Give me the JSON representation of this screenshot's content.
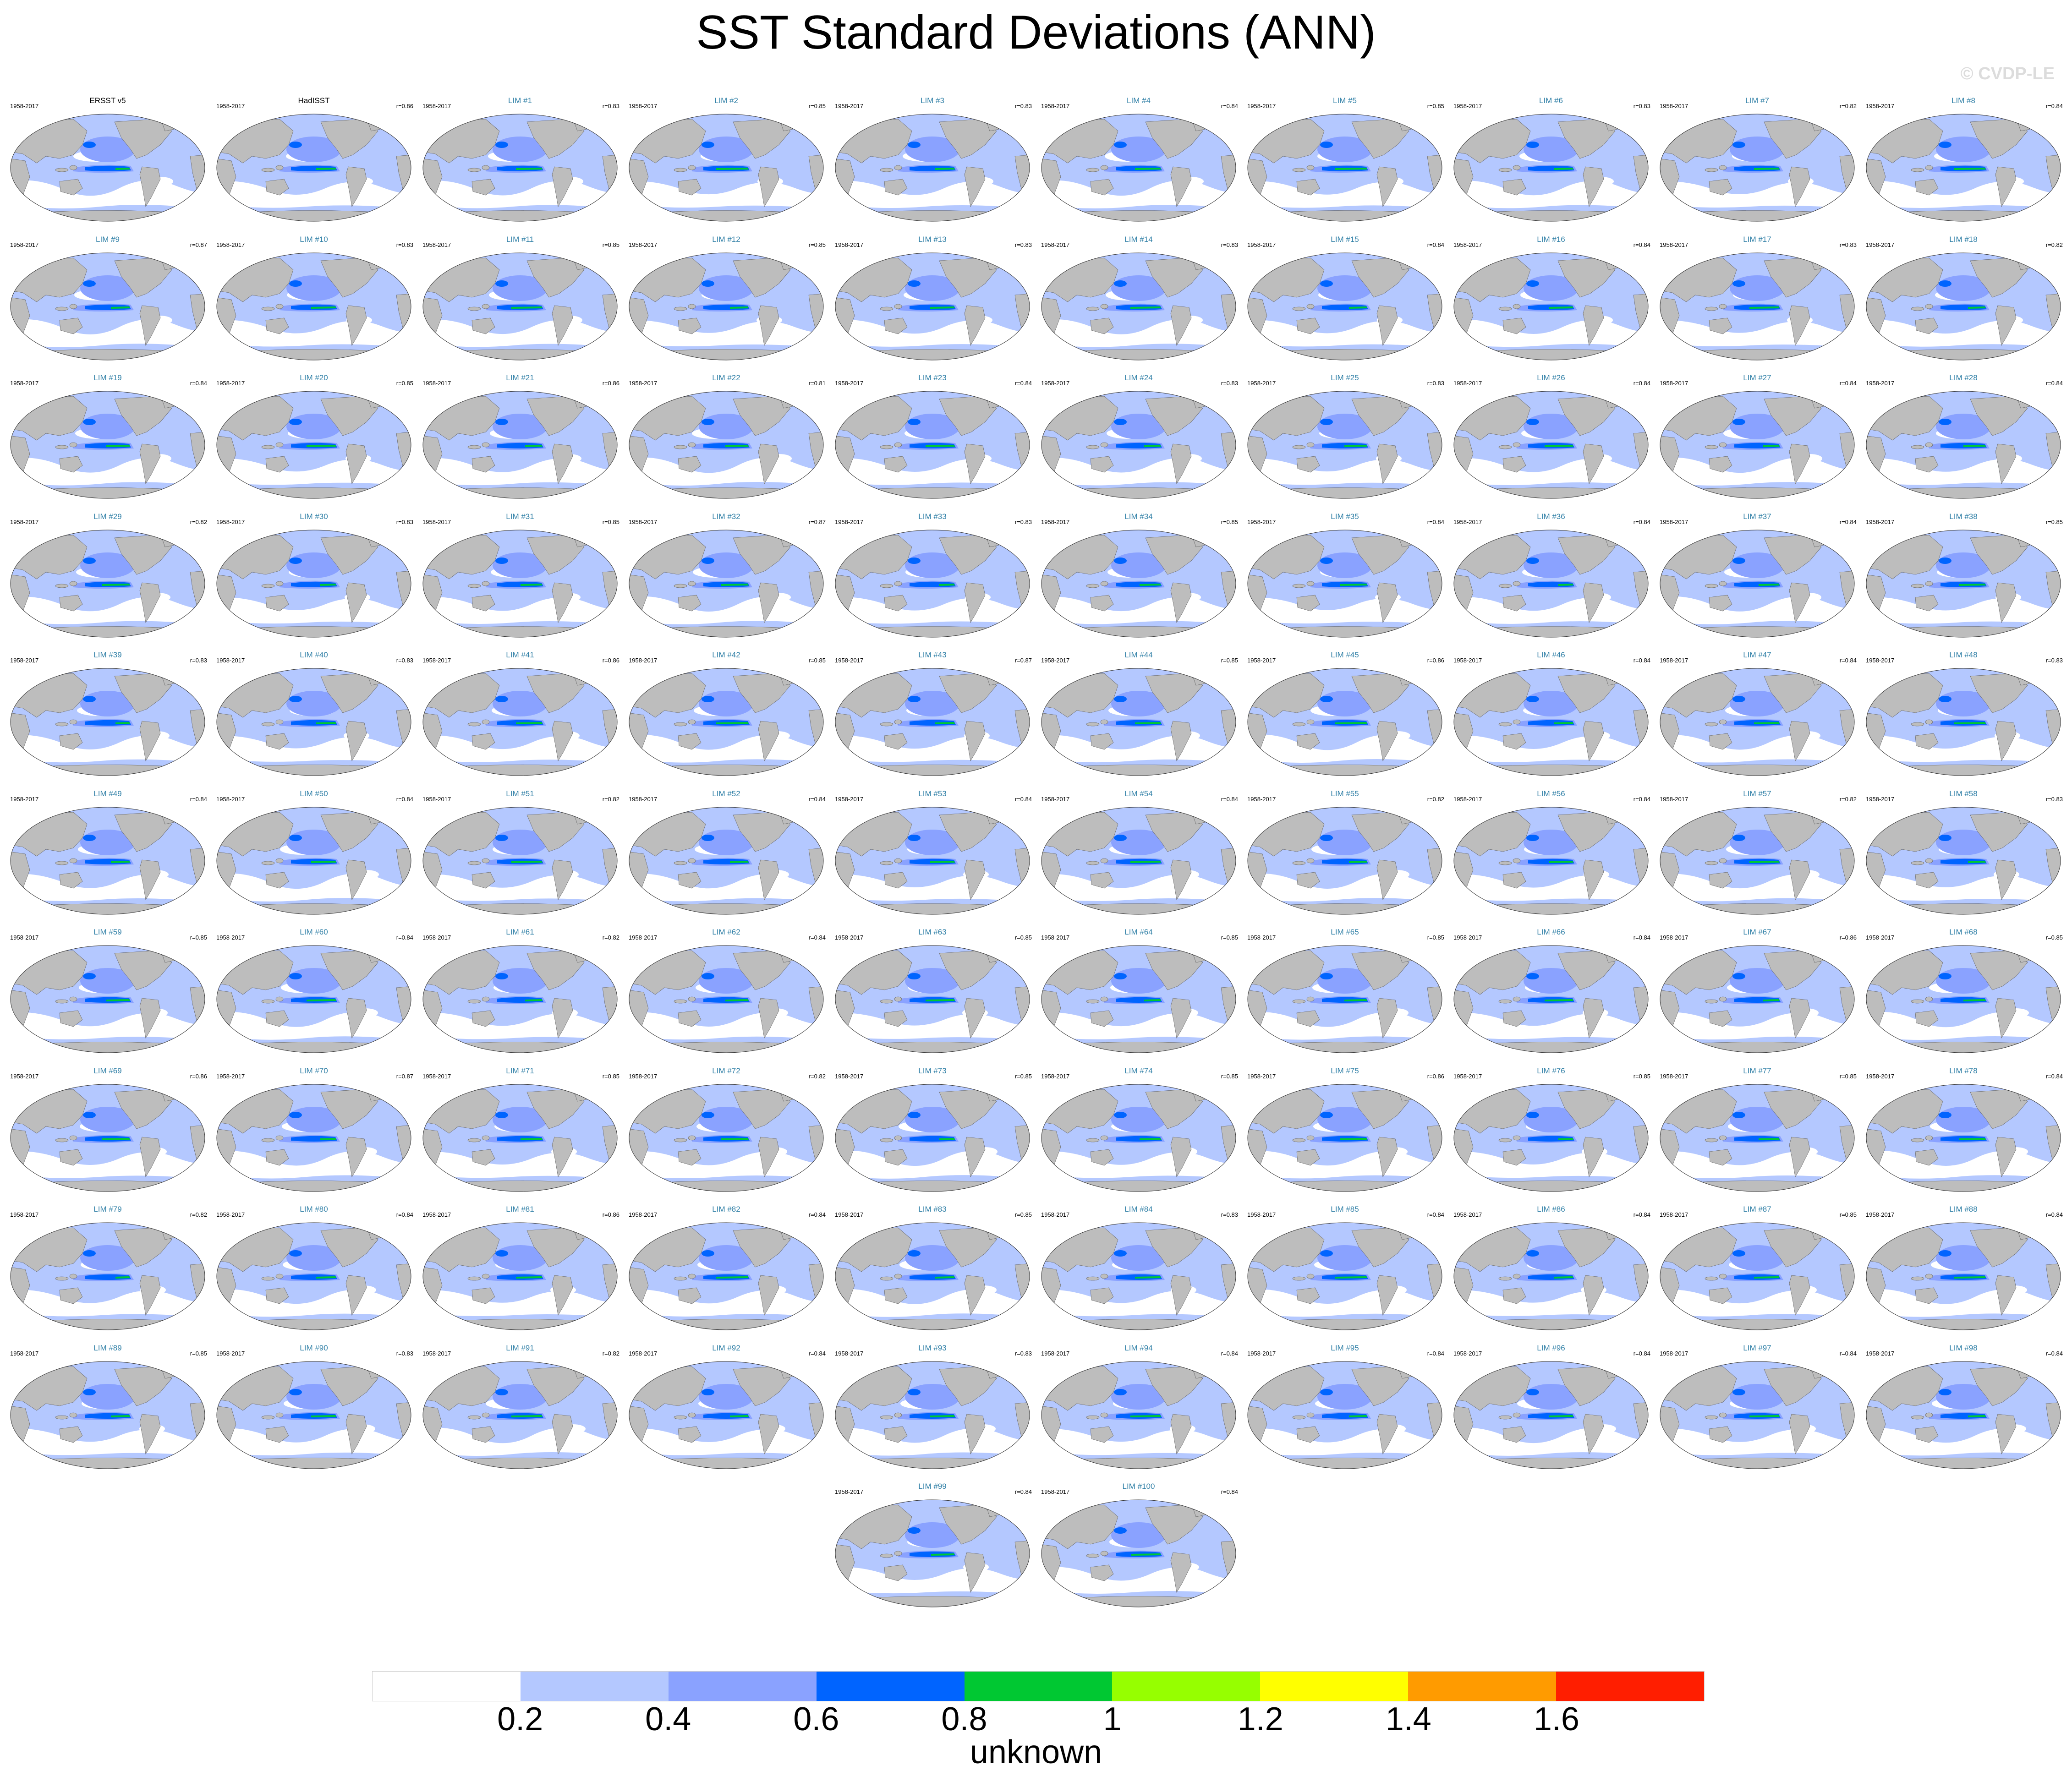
{
  "title": "SST Standard Deviations (ANN)",
  "copyright": "© CVDP-LE",
  "period": "1958-2017",
  "panels": [
    {
      "name": "ERSST v5",
      "corr": "",
      "obs": true
    },
    {
      "name": "HadISST",
      "corr": "r=0.86",
      "obs": true
    },
    {
      "name": "LIM #1",
      "corr": "r=0.83"
    },
    {
      "name": "LIM #2",
      "corr": "r=0.85"
    },
    {
      "name": "LIM #3",
      "corr": "r=0.83"
    },
    {
      "name": "LIM #4",
      "corr": "r=0.84"
    },
    {
      "name": "LIM #5",
      "corr": "r=0.85"
    },
    {
      "name": "LIM #6",
      "corr": "r=0.83"
    },
    {
      "name": "LIM #7",
      "corr": "r=0.82"
    },
    {
      "name": "LIM #8",
      "corr": "r=0.84"
    },
    {
      "name": "LIM #9",
      "corr": "r=0.87"
    },
    {
      "name": "LIM #10",
      "corr": "r=0.83"
    },
    {
      "name": "LIM #11",
      "corr": "r=0.85"
    },
    {
      "name": "LIM #12",
      "corr": "r=0.85"
    },
    {
      "name": "LIM #13",
      "corr": "r=0.83"
    },
    {
      "name": "LIM #14",
      "corr": "r=0.83"
    },
    {
      "name": "LIM #15",
      "corr": "r=0.84"
    },
    {
      "name": "LIM #16",
      "corr": "r=0.84"
    },
    {
      "name": "LIM #17",
      "corr": "r=0.83"
    },
    {
      "name": "LIM #18",
      "corr": "r=0.82"
    },
    {
      "name": "LIM #19",
      "corr": "r=0.84"
    },
    {
      "name": "LIM #20",
      "corr": "r=0.85"
    },
    {
      "name": "LIM #21",
      "corr": "r=0.86"
    },
    {
      "name": "LIM #22",
      "corr": "r=0.81"
    },
    {
      "name": "LIM #23",
      "corr": "r=0.84"
    },
    {
      "name": "LIM #24",
      "corr": "r=0.83"
    },
    {
      "name": "LIM #25",
      "corr": "r=0.83"
    },
    {
      "name": "LIM #26",
      "corr": "r=0.84"
    },
    {
      "name": "LIM #27",
      "corr": "r=0.84"
    },
    {
      "name": "LIM #28",
      "corr": "r=0.84"
    },
    {
      "name": "LIM #29",
      "corr": "r=0.82"
    },
    {
      "name": "LIM #30",
      "corr": "r=0.83"
    },
    {
      "name": "LIM #31",
      "corr": "r=0.85"
    },
    {
      "name": "LIM #32",
      "corr": "r=0.87"
    },
    {
      "name": "LIM #33",
      "corr": "r=0.83"
    },
    {
      "name": "LIM #34",
      "corr": "r=0.85"
    },
    {
      "name": "LIM #35",
      "corr": "r=0.84"
    },
    {
      "name": "LIM #36",
      "corr": "r=0.84"
    },
    {
      "name": "LIM #37",
      "corr": "r=0.84"
    },
    {
      "name": "LIM #38",
      "corr": "r=0.85"
    },
    {
      "name": "LIM #39",
      "corr": "r=0.83"
    },
    {
      "name": "LIM #40",
      "corr": "r=0.83"
    },
    {
      "name": "LIM #41",
      "corr": "r=0.86"
    },
    {
      "name": "LIM #42",
      "corr": "r=0.85"
    },
    {
      "name": "LIM #43",
      "corr": "r=0.87"
    },
    {
      "name": "LIM #44",
      "corr": "r=0.85"
    },
    {
      "name": "LIM #45",
      "corr": "r=0.86"
    },
    {
      "name": "LIM #46",
      "corr": "r=0.84"
    },
    {
      "name": "LIM #47",
      "corr": "r=0.84"
    },
    {
      "name": "LIM #48",
      "corr": "r=0.83"
    },
    {
      "name": "LIM #49",
      "corr": "r=0.84"
    },
    {
      "name": "LIM #50",
      "corr": "r=0.84"
    },
    {
      "name": "LIM #51",
      "corr": "r=0.82"
    },
    {
      "name": "LIM #52",
      "corr": "r=0.84"
    },
    {
      "name": "LIM #53",
      "corr": "r=0.84"
    },
    {
      "name": "LIM #54",
      "corr": "r=0.84"
    },
    {
      "name": "LIM #55",
      "corr": "r=0.82"
    },
    {
      "name": "LIM #56",
      "corr": "r=0.84"
    },
    {
      "name": "LIM #57",
      "corr": "r=0.82"
    },
    {
      "name": "LIM #58",
      "corr": "r=0.83"
    },
    {
      "name": "LIM #59",
      "corr": "r=0.85"
    },
    {
      "name": "LIM #60",
      "corr": "r=0.84"
    },
    {
      "name": "LIM #61",
      "corr": "r=0.82"
    },
    {
      "name": "LIM #62",
      "corr": "r=0.84"
    },
    {
      "name": "LIM #63",
      "corr": "r=0.85"
    },
    {
      "name": "LIM #64",
      "corr": "r=0.85"
    },
    {
      "name": "LIM #65",
      "corr": "r=0.85"
    },
    {
      "name": "LIM #66",
      "corr": "r=0.84"
    },
    {
      "name": "LIM #67",
      "corr": "r=0.86"
    },
    {
      "name": "LIM #68",
      "corr": "r=0.85"
    },
    {
      "name": "LIM #69",
      "corr": "r=0.86"
    },
    {
      "name": "LIM #70",
      "corr": "r=0.87"
    },
    {
      "name": "LIM #71",
      "corr": "r=0.85"
    },
    {
      "name": "LIM #72",
      "corr": "r=0.82"
    },
    {
      "name": "LIM #73",
      "corr": "r=0.85"
    },
    {
      "name": "LIM #74",
      "corr": "r=0.85"
    },
    {
      "name": "LIM #75",
      "corr": "r=0.86"
    },
    {
      "name": "LIM #76",
      "corr": "r=0.85"
    },
    {
      "name": "LIM #77",
      "corr": "r=0.85"
    },
    {
      "name": "LIM #78",
      "corr": "r=0.84"
    },
    {
      "name": "LIM #79",
      "corr": "r=0.82"
    },
    {
      "name": "LIM #80",
      "corr": "r=0.84"
    },
    {
      "name": "LIM #81",
      "corr": "r=0.86"
    },
    {
      "name": "LIM #82",
      "corr": "r=0.84"
    },
    {
      "name": "LIM #83",
      "corr": "r=0.85"
    },
    {
      "name": "LIM #84",
      "corr": "r=0.83"
    },
    {
      "name": "LIM #85",
      "corr": "r=0.84"
    },
    {
      "name": "LIM #86",
      "corr": "r=0.84"
    },
    {
      "name": "LIM #87",
      "corr": "r=0.85"
    },
    {
      "name": "LIM #88",
      "corr": "r=0.84"
    },
    {
      "name": "LIM #89",
      "corr": "r=0.85"
    },
    {
      "name": "LIM #90",
      "corr": "r=0.83"
    },
    {
      "name": "LIM #91",
      "corr": "r=0.82"
    },
    {
      "name": "LIM #92",
      "corr": "r=0.84"
    },
    {
      "name": "LIM #93",
      "corr": "r=0.83"
    },
    {
      "name": "LIM #94",
      "corr": "r=0.84"
    },
    {
      "name": "LIM #95",
      "corr": "r=0.84"
    },
    {
      "name": "LIM #96",
      "corr": "r=0.84"
    },
    {
      "name": "LIM #97",
      "corr": "r=0.84"
    },
    {
      "name": "LIM #98",
      "corr": "r=0.84"
    },
    {
      "name": "LIM #99",
      "corr": "r=0.84"
    },
    {
      "name": "LIM #100",
      "corr": "r=0.84"
    }
  ],
  "colorbar": {
    "colors": [
      "#ffffff",
      "#b4c8ff",
      "#8aa2ff",
      "#0064ff",
      "#00c832",
      "#96ff00",
      "#ffff00",
      "#ff9b00",
      "#ff1e00"
    ],
    "ticks": [
      "0.2",
      "0.4",
      "0.6",
      "0.8",
      "1",
      "1.2",
      "1.4",
      "1.6"
    ],
    "unit": "unknown"
  },
  "map_colors": {
    "land": "#bdbdbd",
    "ocean_weak": "#b4c8ff",
    "ocean_mid": "#8aa2ff",
    "ocean_strong": "#0064ff",
    "ocean_peak": "#00c832"
  }
}
